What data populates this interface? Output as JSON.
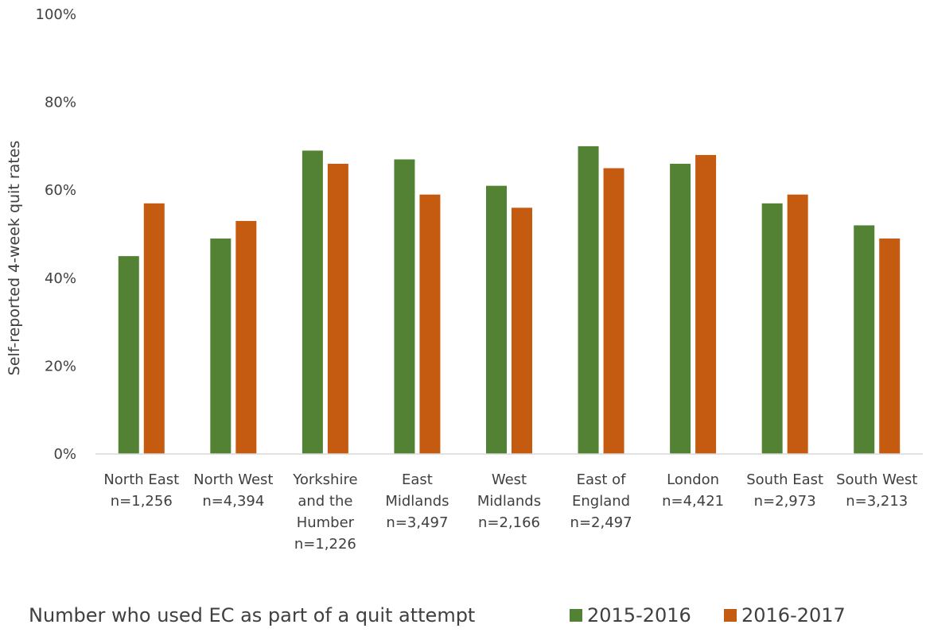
{
  "chart_data": {
    "type": "bar",
    "ylabel": "Self-reported 4-week quit rates",
    "xlabel": "Number who used EC as part of a quit attempt",
    "ylim": [
      0,
      100
    ],
    "yticks": [
      "0%",
      "20%",
      "40%",
      "60%",
      "80%",
      "100%"
    ],
    "grid": false,
    "legend_position": "bottom-right",
    "categories": [
      [
        "North East",
        "n=1,256"
      ],
      [
        "North West",
        "n=4,394"
      ],
      [
        "Yorkshire",
        "and the",
        "Humber",
        "n=1,226"
      ],
      [
        "East",
        "Midlands",
        "n=3,497"
      ],
      [
        "West",
        "Midlands",
        "n=2,166"
      ],
      [
        "East of",
        "England",
        "n=2,497"
      ],
      [
        "London",
        "n=4,421"
      ],
      [
        "South East",
        "n=2,973"
      ],
      [
        "South West",
        "n=3,213"
      ]
    ],
    "series": [
      {
        "name": "2015-2016",
        "color": "#548235",
        "values": [
          45,
          49,
          69,
          67,
          61,
          70,
          66,
          57,
          52
        ]
      },
      {
        "name": "2016-2017",
        "color": "#c55a11",
        "values": [
          57,
          53,
          66,
          59,
          56,
          65,
          68,
          59,
          49
        ]
      }
    ]
  }
}
